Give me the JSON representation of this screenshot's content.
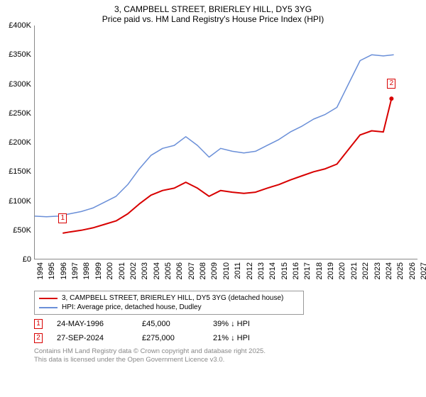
{
  "title": {
    "line1": "3, CAMPBELL STREET, BRIERLEY HILL, DY5 3YG",
    "line2": "Price paid vs. HM Land Registry's House Price Index (HPI)"
  },
  "chart": {
    "type": "line",
    "background_color": "#ffffff",
    "axis_color": "#888888",
    "y": {
      "min": 0,
      "max": 400,
      "step": 50,
      "ticks": [
        "£0",
        "£50K",
        "£100K",
        "£150K",
        "£200K",
        "£250K",
        "£300K",
        "£350K",
        "£400K"
      ]
    },
    "x": {
      "min": 1994,
      "max": 2027,
      "step": 1,
      "ticks": [
        "1994",
        "1995",
        "1996",
        "1997",
        "1998",
        "1999",
        "2000",
        "2001",
        "2002",
        "2003",
        "2004",
        "2005",
        "2006",
        "2007",
        "2008",
        "2009",
        "2010",
        "2011",
        "2012",
        "2013",
        "2014",
        "2015",
        "2016",
        "2017",
        "2018",
        "2019",
        "2020",
        "2021",
        "2022",
        "2023",
        "2024",
        "2025",
        "2026",
        "2027"
      ]
    },
    "series": [
      {
        "name": "HPI: Average price, detached house, Dudley",
        "color": "#6a8fd8",
        "width": 1.5,
        "data": [
          [
            1994,
            74
          ],
          [
            1995,
            73
          ],
          [
            1996,
            74
          ],
          [
            1997,
            78
          ],
          [
            1998,
            82
          ],
          [
            1999,
            88
          ],
          [
            2000,
            98
          ],
          [
            2001,
            108
          ],
          [
            2002,
            128
          ],
          [
            2003,
            155
          ],
          [
            2004,
            178
          ],
          [
            2005,
            190
          ],
          [
            2006,
            195
          ],
          [
            2007,
            210
          ],
          [
            2008,
            195
          ],
          [
            2009,
            175
          ],
          [
            2010,
            190
          ],
          [
            2011,
            185
          ],
          [
            2012,
            182
          ],
          [
            2013,
            185
          ],
          [
            2014,
            195
          ],
          [
            2015,
            205
          ],
          [
            2016,
            218
          ],
          [
            2017,
            228
          ],
          [
            2018,
            240
          ],
          [
            2019,
            248
          ],
          [
            2020,
            260
          ],
          [
            2021,
            300
          ],
          [
            2022,
            340
          ],
          [
            2023,
            350
          ],
          [
            2024,
            348
          ],
          [
            2024.9,
            350
          ]
        ]
      },
      {
        "name": "3, CAMPBELL STREET, BRIERLEY HILL, DY5 3YG (detached house)",
        "color": "#d80000",
        "width": 2,
        "data": [
          [
            1996.4,
            45
          ],
          [
            1997,
            47
          ],
          [
            1998,
            50
          ],
          [
            1999,
            54
          ],
          [
            2000,
            60
          ],
          [
            2001,
            66
          ],
          [
            2002,
            78
          ],
          [
            2003,
            95
          ],
          [
            2004,
            110
          ],
          [
            2005,
            118
          ],
          [
            2006,
            122
          ],
          [
            2007,
            132
          ],
          [
            2008,
            122
          ],
          [
            2009,
            108
          ],
          [
            2010,
            118
          ],
          [
            2011,
            115
          ],
          [
            2012,
            113
          ],
          [
            2013,
            115
          ],
          [
            2014,
            122
          ],
          [
            2015,
            128
          ],
          [
            2016,
            136
          ],
          [
            2017,
            143
          ],
          [
            2018,
            150
          ],
          [
            2019,
            155
          ],
          [
            2020,
            163
          ],
          [
            2021,
            188
          ],
          [
            2022,
            213
          ],
          [
            2023,
            220
          ],
          [
            2024,
            218
          ],
          [
            2024.7,
            275
          ]
        ],
        "end_marker": {
          "x": 2024.7,
          "y": 275,
          "radius": 3
        }
      }
    ],
    "markers": [
      {
        "id": "1",
        "x": 1996.4,
        "y": 45,
        "color": "#d80000"
      },
      {
        "id": "2",
        "x": 2024.7,
        "y": 275,
        "color": "#d80000"
      }
    ]
  },
  "legend": [
    {
      "color": "#d80000",
      "label": "3, CAMPBELL STREET, BRIERLEY HILL, DY5 3YG (detached house)"
    },
    {
      "color": "#6a8fd8",
      "label": "HPI: Average price, detached house, Dudley"
    }
  ],
  "records": [
    {
      "id": "1",
      "color": "#d80000",
      "date": "24-MAY-1996",
      "price": "£45,000",
      "diff": "39% ↓ HPI"
    },
    {
      "id": "2",
      "color": "#d80000",
      "date": "27-SEP-2024",
      "price": "£275,000",
      "diff": "21% ↓ HPI"
    }
  ],
  "footer": {
    "line1": "Contains HM Land Registry data © Crown copyright and database right 2025.",
    "line2": "This data is licensed under the Open Government Licence v3.0."
  }
}
